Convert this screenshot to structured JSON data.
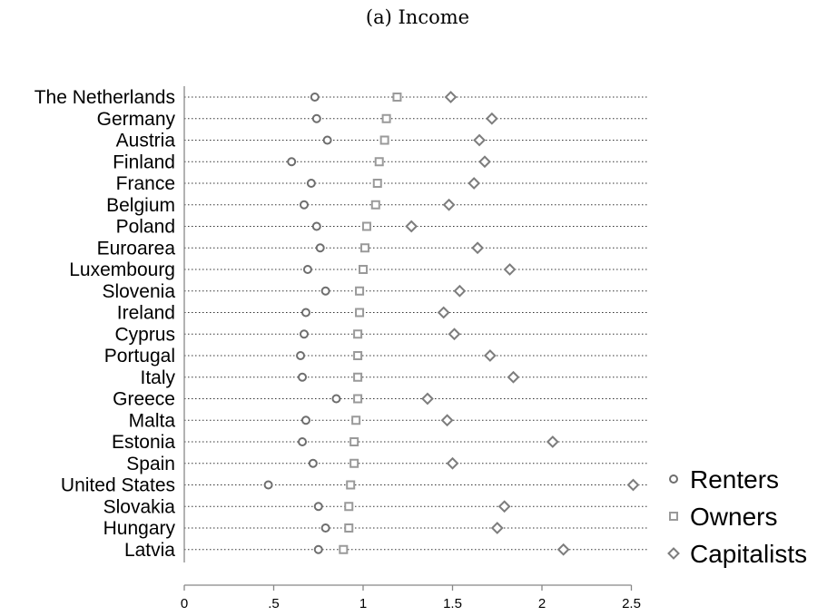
{
  "chart_data": {
    "type": "scatter",
    "title": "(a) Income",
    "xlabel": "",
    "ylabel": "",
    "xlim": [
      0,
      2.6
    ],
    "xticks": [
      0,
      0.5,
      1,
      1.5,
      2,
      2.5
    ],
    "xtick_labels": [
      "0",
      ".5",
      "1",
      "1.5",
      "2",
      "2.5"
    ],
    "legend_position": "right",
    "grid": "dotted row guides",
    "categories": [
      "The Netherlands",
      "Germany",
      "Austria",
      "Finland",
      "France",
      "Belgium",
      "Poland",
      "Euroarea",
      "Luxembourg",
      "Slovenia",
      "Ireland",
      "Cyprus",
      "Portugal",
      "Italy",
      "Greece",
      "Malta",
      "Estonia",
      "Spain",
      "United States",
      "Slovakia",
      "Hungary",
      "Latvia"
    ],
    "series": [
      {
        "name": "Renters",
        "marker": "circle",
        "color": "#6e6e6e",
        "values": [
          0.73,
          0.74,
          0.8,
          0.6,
          0.71,
          0.67,
          0.74,
          0.76,
          0.69,
          0.79,
          0.68,
          0.67,
          0.65,
          0.66,
          0.85,
          0.68,
          0.66,
          0.72,
          0.47,
          0.75,
          0.79,
          0.75
        ]
      },
      {
        "name": "Owners",
        "marker": "square",
        "color": "#9a9a9a",
        "values": [
          1.19,
          1.13,
          1.12,
          1.09,
          1.08,
          1.07,
          1.02,
          1.01,
          1.0,
          0.98,
          0.98,
          0.97,
          0.97,
          0.97,
          0.97,
          0.96,
          0.95,
          0.95,
          0.93,
          0.92,
          0.92,
          0.89
        ]
      },
      {
        "name": "Capitalists",
        "marker": "diamond",
        "color": "#7d7d7d",
        "values": [
          1.49,
          1.72,
          1.65,
          1.68,
          1.62,
          1.48,
          1.27,
          1.64,
          1.82,
          1.54,
          1.45,
          1.51,
          1.71,
          1.84,
          1.36,
          1.47,
          2.06,
          1.5,
          2.51,
          1.79,
          1.75,
          2.12
        ]
      }
    ]
  }
}
